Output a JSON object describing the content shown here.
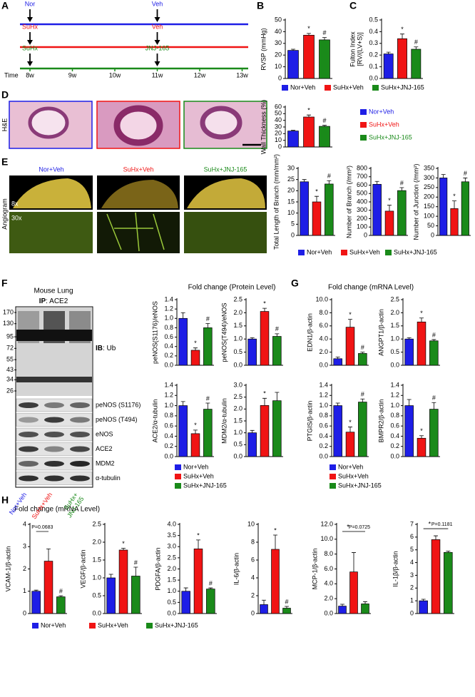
{
  "panel_labels": [
    "A",
    "B",
    "C",
    "D",
    "E",
    "F",
    "G",
    "H"
  ],
  "groups": [
    {
      "name": "Nor+Veh",
      "color": "#1e1ee6"
    },
    {
      "name": "SuHx+Veh",
      "color": "#f01414"
    },
    {
      "name": "SuHx+JNJ-165",
      "color": "#1a8a1a"
    }
  ],
  "timeline": {
    "label": "Time",
    "ticks": [
      "8w",
      "9w",
      "10w",
      "11w",
      "12w",
      "13w"
    ],
    "rows": [
      {
        "start": "Nor",
        "end": "Veh",
        "color": "#1e1ee6"
      },
      {
        "start": "SuHx",
        "end": "Veh",
        "color": "#f01414"
      },
      {
        "start": "SuHx",
        "end": "JNJ-165",
        "color": "#1a8a1a"
      }
    ]
  },
  "images": {
    "he_label": "H&E",
    "angio_label": "Angiogram",
    "low_mag": "8x",
    "high_mag": "30x"
  },
  "blot": {
    "title": "Mouse Lung",
    "ip": "IP",
    "ip_target": ": ACE2",
    "ib": "IB",
    "ib_target": ": Ub",
    "mw": [
      170,
      130,
      95,
      72,
      55,
      43,
      34,
      26
    ],
    "bands": [
      "peNOS (S1176)",
      "peNOS (T494)",
      "eNOS",
      "ACE2",
      "MDM2",
      "α-tubulin"
    ],
    "lane_labels": [
      [
        "Nor+Veh"
      ],
      [
        "SuHx+Veh"
      ],
      [
        "SuHx+",
        "JNJ-165"
      ]
    ]
  },
  "headings": {
    "protein": "Fold change (Protein Level)",
    "mrna_g": "Fold change (mRNA Level)",
    "mrna_h": "Fold change (mRNA Level)"
  },
  "chart_data": [
    {
      "type": "bar",
      "ylabel": [
        "RVSP (mmHg)"
      ],
      "values": [
        24,
        37,
        33
      ],
      "errors": [
        1,
        1.5,
        2
      ],
      "ylim": [
        0,
        50
      ],
      "yticks": [
        0,
        10,
        20,
        30,
        40,
        50
      ],
      "bar_labels": [
        null,
        "*",
        "#"
      ]
    },
    {
      "type": "bar",
      "ylabel": [
        "Fulton Index",
        "[RV/(LV+S)]"
      ],
      "values": [
        0.21,
        0.34,
        0.25
      ],
      "errors": [
        0.015,
        0.04,
        0.02
      ],
      "ylim": [
        0,
        0.5
      ],
      "yticks": [
        {
          "value": 0,
          "label": "0.0"
        },
        0.1,
        0.2,
        0.3,
        0.4,
        0.5
      ],
      "bar_labels": [
        null,
        "*",
        "#"
      ]
    },
    {
      "type": "bar",
      "ylabel": [
        "Wall Thickness (%)"
      ],
      "values": [
        24,
        45,
        31
      ],
      "errors": [
        1,
        3,
        1.5
      ],
      "ylim": [
        0,
        60
      ],
      "yticks": [
        0,
        10,
        20,
        30,
        40,
        50,
        60
      ],
      "bar_labels": [
        null,
        "*",
        "#"
      ]
    },
    {
      "type": "bar",
      "ylabel": [
        "Total Length of Branch (mm/mm²)"
      ],
      "values": [
        24,
        15,
        23
      ],
      "errors": [
        1,
        2.5,
        1.5
      ],
      "ylim": [
        0,
        30
      ],
      "yticks": [
        0,
        5,
        10,
        15,
        20,
        25,
        30
      ],
      "bar_labels": [
        null,
        "*",
        "#"
      ]
    },
    {
      "type": "bar",
      "ylabel": [
        "Number of Branch (/mm²)"
      ],
      "values": [
        610,
        290,
        535
      ],
      "errors": [
        35,
        70,
        35
      ],
      "ylim": [
        0,
        800
      ],
      "yticks": [
        0,
        100,
        200,
        300,
        400,
        500,
        600,
        700,
        800
      ],
      "bar_labels": [
        null,
        "*",
        "#"
      ]
    },
    {
      "type": "bar",
      "ylabel": [
        "Number of Junction (/mm²)"
      ],
      "values": [
        300,
        140,
        280
      ],
      "errors": [
        18,
        40,
        20
      ],
      "ylim": [
        0,
        350
      ],
      "yticks": [
        0,
        50,
        100,
        150,
        200,
        250,
        300,
        350
      ],
      "bar_labels": [
        null,
        "*",
        "#"
      ]
    },
    {
      "type": "bar",
      "ylabel": [
        "peNOS(S1176)/eNOS"
      ],
      "values": [
        1.0,
        0.32,
        0.8
      ],
      "errors": [
        0.12,
        0.05,
        0.09
      ],
      "ylim": [
        0,
        1.4
      ],
      "yticks": [
        {
          "value": 0,
          "label": "0.0"
        },
        0.2,
        0.4,
        0.6,
        0.8,
        {
          "value": 1,
          "label": "1.0"
        },
        1.2,
        1.4
      ],
      "bar_labels": [
        null,
        "*",
        "#"
      ]
    },
    {
      "type": "bar",
      "ylabel": [
        "peNOS(T494)/eNOS"
      ],
      "values": [
        1.0,
        2.05,
        1.1
      ],
      "errors": [
        0.05,
        0.12,
        0.1
      ],
      "ylim": [
        0,
        2.5
      ],
      "yticks": [
        {
          "value": 0,
          "label": "0.0"
        },
        0.5,
        {
          "value": 1,
          "label": "1.0"
        },
        1.5,
        {
          "value": 2,
          "label": "2.0"
        },
        2.5
      ],
      "bar_labels": [
        null,
        "*",
        "#"
      ]
    },
    {
      "type": "bar",
      "ylabel": [
        "ACE2/α-tubulin"
      ],
      "values": [
        1.0,
        0.45,
        0.93
      ],
      "errors": [
        0.08,
        0.07,
        0.12
      ],
      "ylim": [
        0,
        1.4
      ],
      "yticks": [
        {
          "value": 0,
          "label": "0.0"
        },
        0.2,
        0.4,
        0.6,
        0.8,
        {
          "value": 1,
          "label": "1.0"
        },
        1.2,
        1.4
      ],
      "bar_labels": [
        null,
        "*",
        "#"
      ]
    },
    {
      "type": "bar",
      "ylabel": [
        "MDM2/α-tubulin"
      ],
      "values": [
        1.0,
        2.15,
        2.35
      ],
      "errors": [
        0.1,
        0.3,
        0.35
      ],
      "ylim": [
        0,
        3.0
      ],
      "yticks": [
        {
          "value": 0,
          "label": "0.0"
        },
        0.5,
        {
          "value": 1,
          "label": "1.0"
        },
        1.5,
        {
          "value": 2,
          "label": "2.0"
        },
        2.5,
        {
          "value": 3,
          "label": "3.0"
        }
      ],
      "bar_labels": [
        null,
        "*",
        null
      ]
    },
    {
      "type": "bar",
      "ylabel": [
        "EDN1/β-actin"
      ],
      "values": [
        1.0,
        5.8,
        1.8
      ],
      "errors": [
        0.25,
        1.2,
        0.2
      ],
      "ylim": [
        0,
        10
      ],
      "yticks": [
        {
          "value": 0,
          "label": "0.0"
        },
        {
          "value": 2,
          "label": "2.0"
        },
        {
          "value": 4,
          "label": "4.0"
        },
        {
          "value": 6,
          "label": "6.0"
        },
        {
          "value": 8,
          "label": "8.0"
        },
        {
          "value": 10,
          "label": "10.0"
        }
      ],
      "bar_labels": [
        null,
        "*",
        "#"
      ]
    },
    {
      "type": "bar",
      "ylabel": [
        "ANGPT1/β-actin"
      ],
      "values": [
        1.0,
        1.65,
        0.93
      ],
      "errors": [
        0.05,
        0.15,
        0.05
      ],
      "ylim": [
        0,
        2.5
      ],
      "yticks": [
        {
          "value": 0,
          "label": "0.0"
        },
        0.5,
        {
          "value": 1,
          "label": "1.0"
        },
        1.5,
        {
          "value": 2,
          "label": "2.0"
        },
        2.5
      ],
      "bar_labels": [
        null,
        "*",
        "#"
      ]
    },
    {
      "type": "bar",
      "ylabel": [
        "PTGIS/β-actin"
      ],
      "values": [
        1.0,
        0.48,
        1.07
      ],
      "errors": [
        0.05,
        0.1,
        0.06
      ],
      "ylim": [
        0,
        1.4
      ],
      "yticks": [
        {
          "value": 0,
          "label": "0.0"
        },
        0.2,
        0.4,
        0.6,
        0.8,
        {
          "value": 1,
          "label": "1.0"
        },
        1.2,
        1.4
      ],
      "bar_labels": [
        null,
        "*",
        "#"
      ]
    },
    {
      "type": "bar",
      "ylabel": [
        "BMPR2/β-actin"
      ],
      "values": [
        1.0,
        0.36,
        0.93
      ],
      "errors": [
        0.12,
        0.05,
        0.13
      ],
      "ylim": [
        0,
        1.4
      ],
      "yticks": [
        {
          "value": 0,
          "label": "0.0"
        },
        0.2,
        0.4,
        0.6,
        0.8,
        {
          "value": 1,
          "label": "1.0"
        },
        1.2,
        1.4
      ],
      "bar_labels": [
        null,
        "*",
        "#"
      ]
    },
    {
      "type": "bar",
      "ylabel": [
        "VCAM-1/β-actin"
      ],
      "values": [
        1.0,
        2.35,
        0.75
      ],
      "errors": [
        0.05,
        0.55,
        0.05
      ],
      "ylim": [
        0,
        4
      ],
      "yticks": [
        0,
        1,
        2,
        3,
        4
      ],
      "bar_labels": [
        null,
        null,
        "#"
      ],
      "brackets": [
        "P=0.0683",
        null
      ]
    },
    {
      "type": "bar",
      "ylabel": [
        "VEGF/β-actin"
      ],
      "values": [
        1.0,
        1.78,
        1.05
      ],
      "errors": [
        0.1,
        0.05,
        0.25
      ],
      "ylim": [
        0,
        2.5
      ],
      "yticks": [
        {
          "value": 0,
          "label": "0.0"
        },
        0.5,
        {
          "value": 1,
          "label": "1.0"
        },
        1.5,
        {
          "value": 2,
          "label": "2.0"
        },
        2.5
      ],
      "bar_labels": [
        null,
        "*",
        "#"
      ]
    },
    {
      "type": "bar",
      "ylabel": [
        "PDGFA/β-actin"
      ],
      "values": [
        1.0,
        2.9,
        1.1
      ],
      "errors": [
        0.15,
        0.4,
        0.05
      ],
      "ylim": [
        0,
        4.0
      ],
      "yticks": [
        {
          "value": 0,
          "label": "0.0"
        },
        0.5,
        {
          "value": 1,
          "label": "1.0"
        },
        1.5,
        {
          "value": 2,
          "label": "2.0"
        },
        2.5,
        {
          "value": 3,
          "label": "3.0"
        },
        3.5,
        {
          "value": 4,
          "label": "4.0"
        }
      ],
      "bar_labels": [
        null,
        "*",
        "#"
      ]
    },
    {
      "type": "bar",
      "ylabel": [
        "IL-6/β-actin"
      ],
      "values": [
        1.0,
        7.2,
        0.6
      ],
      "errors": [
        0.5,
        1.6,
        0.2
      ],
      "ylim": [
        0,
        10
      ],
      "yticks": [
        0,
        2,
        4,
        6,
        8,
        10
      ],
      "bar_labels": [
        null,
        "*",
        "#"
      ]
    },
    {
      "type": "bar",
      "ylabel": [
        "MCP-1/β-actin"
      ],
      "values": [
        1.0,
        5.6,
        1.3
      ],
      "errors": [
        0.25,
        2.6,
        0.3
      ],
      "ylim": [
        0,
        12.0
      ],
      "yticks": [
        {
          "value": 0,
          "label": "0.0"
        },
        {
          "value": 2,
          "label": "2.0"
        },
        {
          "value": 4,
          "label": "4.0"
        },
        {
          "value": 6,
          "label": "6.0"
        },
        {
          "value": 8,
          "label": "8.0"
        },
        {
          "value": 10,
          "label": "10.0"
        },
        {
          "value": 12,
          "label": "12.0"
        }
      ],
      "brackets": [
        "*",
        "P=0.0725"
      ]
    },
    {
      "type": "bar",
      "ylabel": [
        "IL-1β/β-actin"
      ],
      "values": [
        1.0,
        5.8,
        4.8
      ],
      "errors": [
        0.12,
        0.3,
        0.1
      ],
      "ylim": [
        0,
        7
      ],
      "yticks": [
        0,
        1,
        2,
        3,
        4,
        5,
        6,
        7
      ],
      "brackets": [
        "*",
        "P=0.1181"
      ]
    }
  ]
}
